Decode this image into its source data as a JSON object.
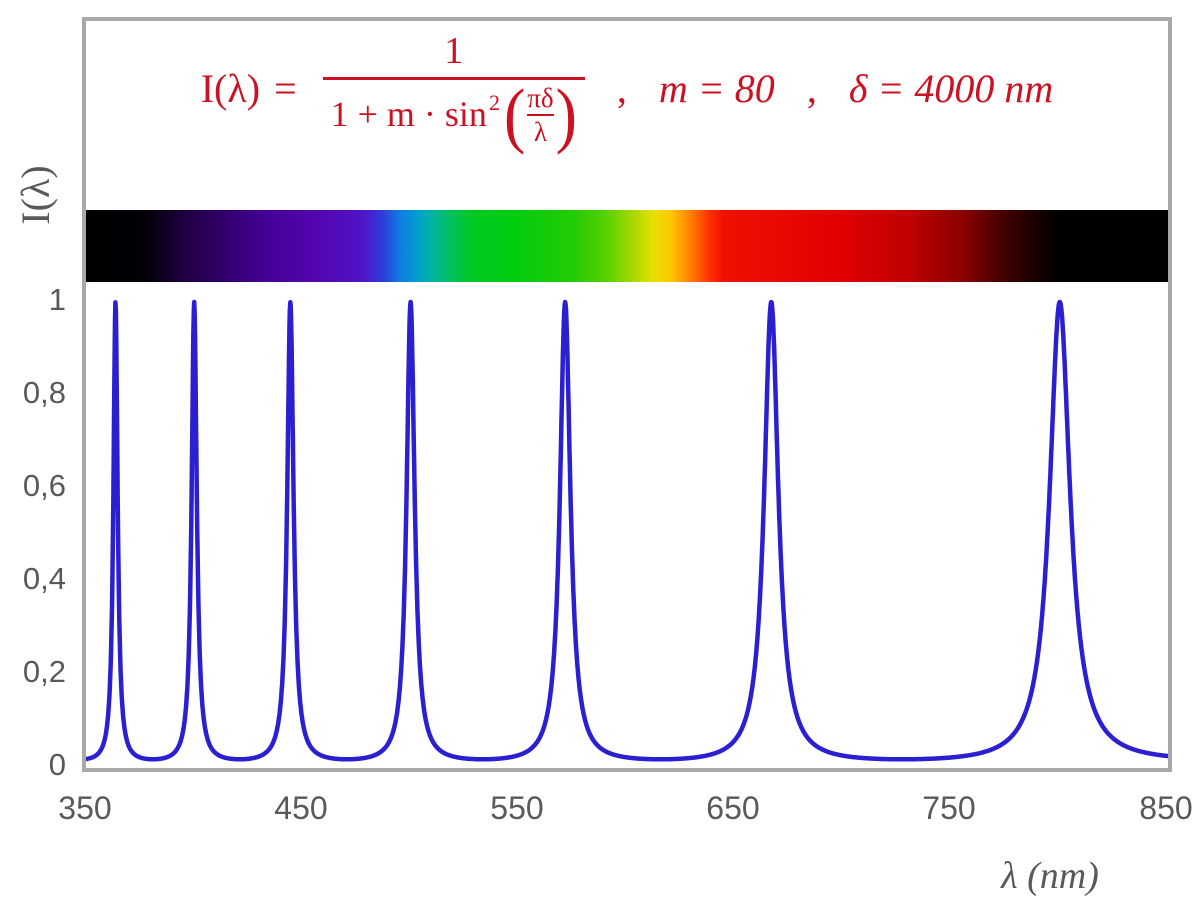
{
  "colors": {
    "formula_red": "#cc1122",
    "axis_text": "#595959",
    "frame_gray": "#a8a8a8",
    "curve_blue": "#2a20d2",
    "background": "#ffffff"
  },
  "formula": {
    "lhs": "I(λ)",
    "equals": "=",
    "numerator": "1",
    "den_prefix": "1 + m · sin",
    "den_exp": "2",
    "paren_open": "(",
    "paren_close": ")",
    "inner_num": "πδ",
    "inner_den": "λ",
    "comma1": ",",
    "param_m": "m = 80",
    "comma2": ",",
    "param_delta": "δ = 4000 nm"
  },
  "spectrum_bar": {
    "stops": [
      [
        0,
        "#000000"
      ],
      [
        5.6,
        "#030008"
      ],
      [
        9,
        "#1e0040"
      ],
      [
        13,
        "#32006e"
      ],
      [
        17,
        "#46009a"
      ],
      [
        22,
        "#5407b4"
      ],
      [
        25.6,
        "#4e14c8"
      ],
      [
        27.4,
        "#2f3cdc"
      ],
      [
        29,
        "#0f7ce0"
      ],
      [
        30.6,
        "#00a0d0"
      ],
      [
        32,
        "#00b4a0"
      ],
      [
        33.6,
        "#00c060"
      ],
      [
        35.6,
        "#00c822"
      ],
      [
        39,
        "#00cc11"
      ],
      [
        45,
        "#22cc05"
      ],
      [
        48,
        "#55d000"
      ],
      [
        50.6,
        "#a8d800"
      ],
      [
        52.4,
        "#e8e000"
      ],
      [
        54,
        "#ffc800"
      ],
      [
        56,
        "#ff7a00"
      ],
      [
        57.6,
        "#ff3000"
      ],
      [
        59,
        "#f01000"
      ],
      [
        70,
        "#e00000"
      ],
      [
        76,
        "#c00000"
      ],
      [
        81,
        "#8c0000"
      ],
      [
        84.4,
        "#4a0000"
      ],
      [
        88,
        "#150000"
      ],
      [
        90,
        "#000000"
      ],
      [
        100,
        "#000000"
      ]
    ]
  },
  "chart_data": {
    "type": "line",
    "xlabel": "λ  (nm)",
    "ylabel": "I(λ)",
    "xlim": [
      350,
      850
    ],
    "ylim": [
      0,
      1
    ],
    "x_ticks": [
      350,
      450,
      550,
      650,
      750,
      850
    ],
    "x_tick_labels": [
      "350",
      "450",
      "550",
      "650",
      "750",
      "850"
    ],
    "y_ticks": [
      1,
      0.8,
      0.6,
      0.4,
      0.2,
      0
    ],
    "y_tick_labels": [
      "1",
      "0,8",
      "0,6",
      "0,4",
      "0,2",
      "0"
    ],
    "grid": false,
    "legend": false,
    "line_color": "#2a20d2",
    "function": {
      "formula": "I(λ) = 1 / (1 + m·sin²(π·δ/λ))",
      "m": 80,
      "delta_nm": 4000
    },
    "peaks_nm": [
      363.64,
      400,
      444.44,
      500,
      571.43,
      666.67,
      800
    ],
    "peak_intensity": 1,
    "baseline_intensity": 0.0123
  }
}
